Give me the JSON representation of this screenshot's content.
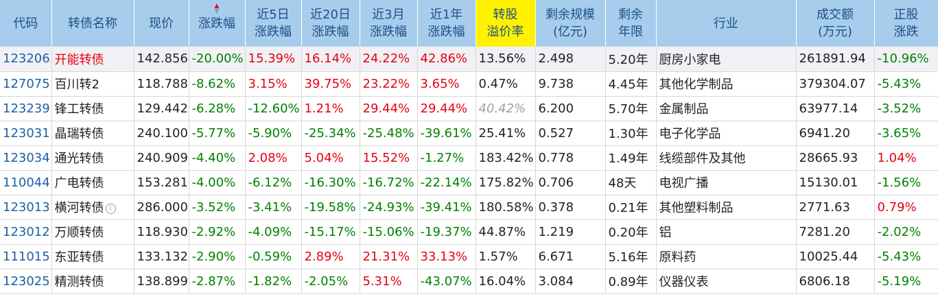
{
  "headers": {
    "code": "代码",
    "name": "转债名称",
    "price": "现价",
    "chg": "涨跌幅",
    "chg5d_1": "近5日",
    "chg5d_2": "涨跌幅",
    "chg20d_1": "近20日",
    "chg20d_2": "涨跌幅",
    "chg3m_1": "近3月",
    "chg3m_2": "涨跌幅",
    "chg1y_1": "近1年",
    "chg1y_2": "涨跌幅",
    "prem_1": "转股",
    "prem_2": "溢价率",
    "scale_1": "剩余规模",
    "scale_2": "(亿元)",
    "years_1": "剩余",
    "years_2": "年限",
    "industry": "行业",
    "volume_1": "成交额",
    "volume_2": "(万元)",
    "stock_1": "正股",
    "stock_2": "涨跌"
  },
  "colors": {
    "header_bg": "#a8cdec",
    "highlight": "#fff200",
    "up": "#e60012",
    "down": "#008000",
    "code": "#1d5fa6"
  },
  "sort_icon": "sort-arrows-icon",
  "rows": [
    {
      "code": "123206",
      "name": "开能转债",
      "price": "142.856",
      "chg": "-20.00%",
      "chg5d": "15.39%",
      "chg20d": "16.14%",
      "chg3m": "24.22%",
      "chg1y": "42.86%",
      "prem": "13.56%",
      "scale": "2.498",
      "years": "5.20年",
      "industry": "厨房小家电",
      "volume": "261891.94",
      "stock": "-10.96%"
    },
    {
      "code": "127075",
      "name": "百川转2",
      "price": "118.788",
      "chg": "-8.62%",
      "chg5d": "3.15%",
      "chg20d": "39.75%",
      "chg3m": "23.22%",
      "chg1y": "3.65%",
      "prem": "0.47%",
      "scale": "9.738",
      "years": "4.45年",
      "industry": "其他化学制品",
      "volume": "379304.07",
      "stock": "-5.43%"
    },
    {
      "code": "123239",
      "name": "锋工转债",
      "price": "129.442",
      "chg": "-6.28%",
      "chg5d": "-12.60%",
      "chg20d": "1.21%",
      "chg3m": "29.44%",
      "chg1y": "29.44%",
      "prem": "40.42%",
      "scale": "6.200",
      "years": "5.70年",
      "industry": "金属制品",
      "volume": "63977.14",
      "stock": "-3.52%"
    },
    {
      "code": "123031",
      "name": "晶瑞转债",
      "price": "240.100",
      "chg": "-5.77%",
      "chg5d": "-5.90%",
      "chg20d": "-25.34%",
      "chg3m": "-25.48%",
      "chg1y": "-39.61%",
      "prem": "25.41%",
      "scale": "0.527",
      "years": "1.30年",
      "industry": "电子化学品",
      "volume": "6941.20",
      "stock": "-3.65%"
    },
    {
      "code": "123034",
      "name": "通光转债",
      "price": "240.909",
      "chg": "-4.40%",
      "chg5d": "2.08%",
      "chg20d": "5.04%",
      "chg3m": "15.52%",
      "chg1y": "-1.27%",
      "prem": "183.42%",
      "scale": "0.778",
      "years": "1.49年",
      "industry": "线缆部件及其他",
      "volume": "28665.93",
      "stock": "1.04%"
    },
    {
      "code": "110044",
      "name": "广电转债",
      "price": "153.281",
      "chg": "-4.00%",
      "chg5d": "-6.12%",
      "chg20d": "-16.30%",
      "chg3m": "-16.72%",
      "chg1y": "-22.14%",
      "prem": "175.82%",
      "scale": "0.706",
      "years": "48天",
      "industry": "电视广播",
      "volume": "15130.01",
      "stock": "-1.56%"
    },
    {
      "code": "123013",
      "name": "横河转债",
      "price": "286.000",
      "chg": "-3.52%",
      "chg5d": "-3.41%",
      "chg20d": "-19.58%",
      "chg3m": "-24.93%",
      "chg1y": "-39.41%",
      "prem": "180.58%",
      "scale": "0.378",
      "years": "0.21年",
      "industry": "其他塑料制品",
      "volume": "2771.63",
      "stock": "0.79%"
    },
    {
      "code": "123012",
      "name": "万顺转债",
      "price": "118.930",
      "chg": "-2.92%",
      "chg5d": "-4.09%",
      "chg20d": "-15.17%",
      "chg3m": "-15.06%",
      "chg1y": "-19.37%",
      "prem": "44.87%",
      "scale": "1.219",
      "years": "0.20年",
      "industry": "铝",
      "volume": "7281.20",
      "stock": "-2.02%"
    },
    {
      "code": "111015",
      "name": "东亚转债",
      "price": "133.132",
      "chg": "-2.90%",
      "chg5d": "-0.59%",
      "chg20d": "2.89%",
      "chg3m": "21.31%",
      "chg1y": "33.13%",
      "prem": "1.57%",
      "scale": "6.671",
      "years": "5.16年",
      "industry": "原料药",
      "volume": "10025.44",
      "stock": "-5.43%"
    },
    {
      "code": "123025",
      "name": "精测转债",
      "price": "138.899",
      "chg": "-2.87%",
      "chg5d": "-1.82%",
      "chg20d": "-2.05%",
      "chg3m": "5.31%",
      "chg1y": "-43.07%",
      "prem": "16.04%",
      "scale": "3.084",
      "years": "0.89年",
      "industry": "仪器仪表",
      "volume": "6806.18",
      "stock": "-5.19%"
    }
  ]
}
